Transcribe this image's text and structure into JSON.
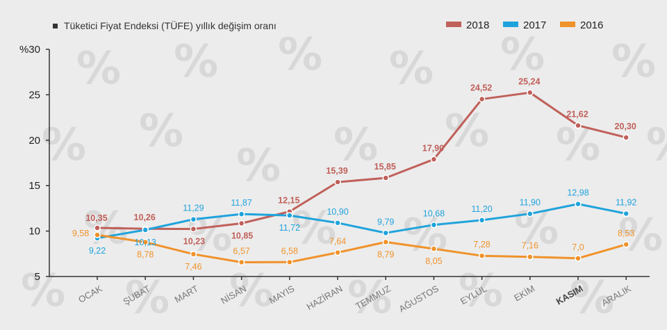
{
  "title": "Tüketici Fiyat Endeksi (TÜFE) yıllık değişim oranı",
  "chart_data": {
    "type": "line",
    "title": "Tüketici Fiyat Endeksi (TÜFE) yıllık değişim oranı",
    "ylabel": "%30",
    "ylim": [
      5,
      30
    ],
    "yticks": [
      "5",
      "10",
      "15",
      "20",
      "25",
      "%30"
    ],
    "categories": [
      "OCAK",
      "ŞUBAT",
      "MART",
      "NİSAN",
      "MAYIS",
      "HAZİRAN",
      "TEMMUZ",
      "AĞUSTOS",
      "EYLÜL",
      "EKİM",
      "KASIM",
      "ARALIK"
    ],
    "highlight_category": "KASIM",
    "legend_position": "top-right",
    "series": [
      {
        "name": "2018",
        "color": "#c0605a",
        "values": [
          10.35,
          10.26,
          10.23,
          10.85,
          12.15,
          15.39,
          15.85,
          17.9,
          24.52,
          25.24,
          21.62,
          20.3
        ],
        "labels": [
          "10,35",
          "10,26",
          "10,23",
          "10,85",
          "12,15",
          "15,39",
          "15,85",
          "17,90",
          "24,52",
          "25,24",
          "21,62",
          "20,30"
        ]
      },
      {
        "name": "2017",
        "color": "#1fa3dc",
        "values": [
          9.22,
          10.13,
          11.29,
          11.87,
          11.72,
          10.9,
          9.79,
          10.68,
          11.2,
          11.9,
          12.98,
          11.92
        ],
        "labels": [
          "9,22",
          "10,13",
          "11,29",
          "11,87",
          "11,72",
          "10,90",
          "9,79",
          "10,68",
          "11,20",
          "11,90",
          "12,98",
          "11,92"
        ]
      },
      {
        "name": "2016",
        "color": "#f0922a",
        "values": [
          9.58,
          8.78,
          7.46,
          6.57,
          6.58,
          7.64,
          8.79,
          8.05,
          7.28,
          7.16,
          7.0,
          8.53
        ],
        "labels": [
          "9,58",
          "8,78",
          "7,46",
          "6,57",
          "6,58",
          "7,64",
          "8,79",
          "8,05",
          "7,28",
          "7,16",
          "7,0",
          "8,53"
        ]
      }
    ]
  }
}
